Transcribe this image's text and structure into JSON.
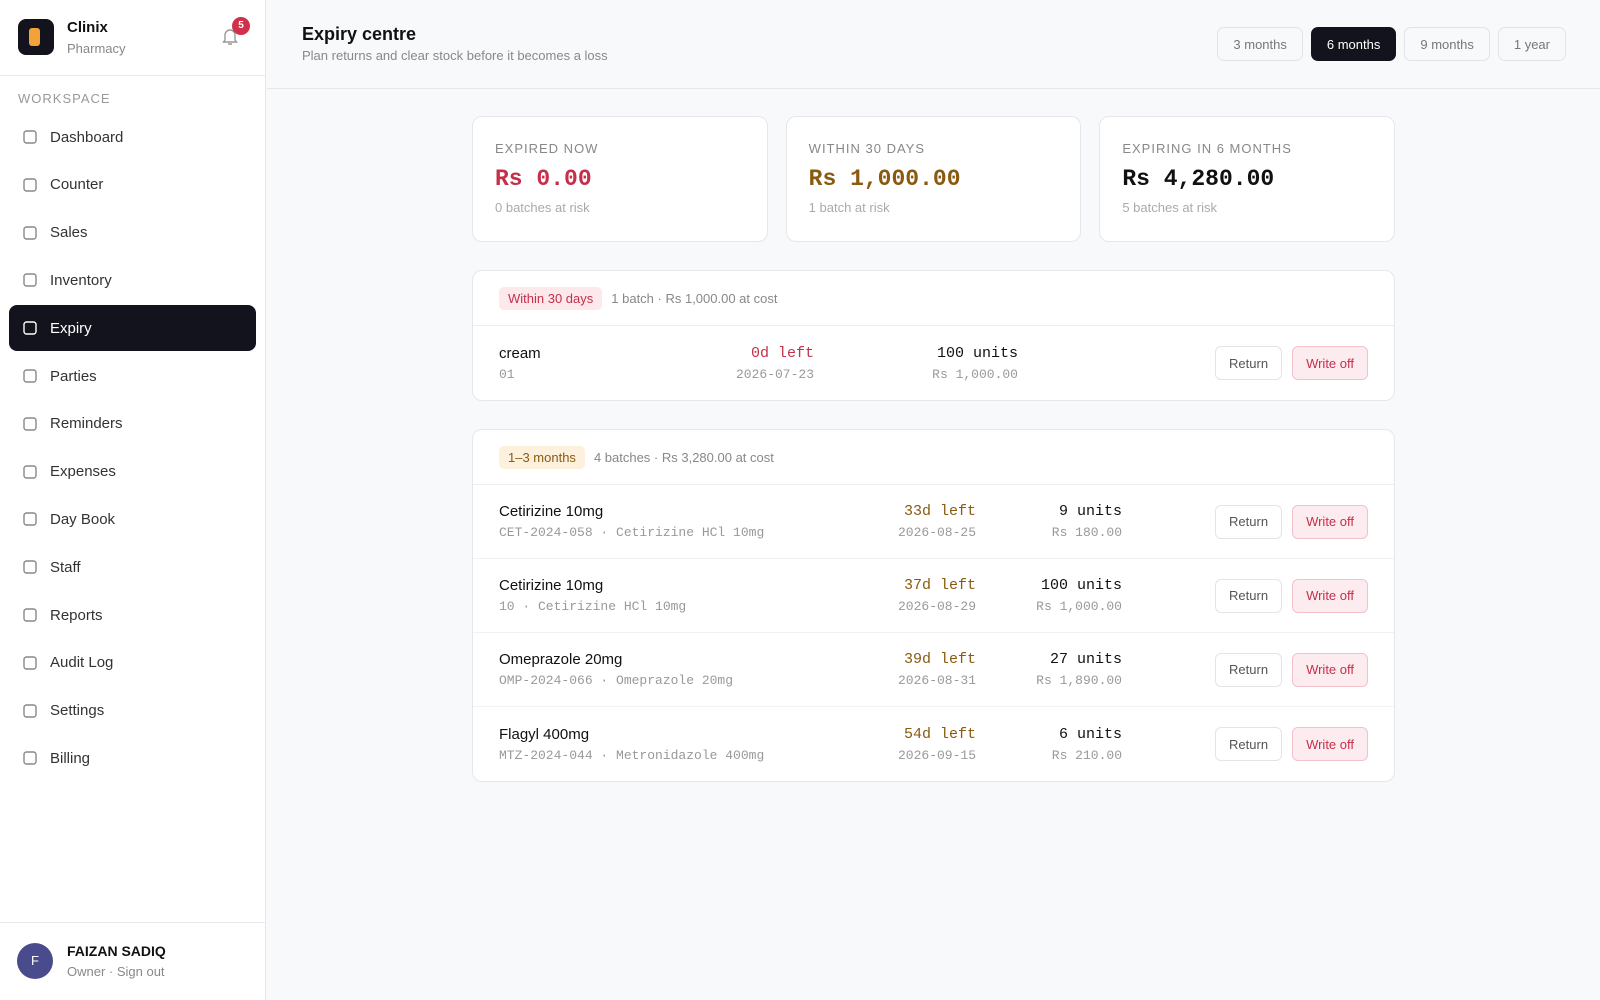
{
  "sidebar": {
    "brand": {
      "name": "Clinix",
      "sub": "Pharmacy"
    },
    "notifications": "5",
    "section": "WORKSPACE",
    "nav": [
      "Dashboard",
      "Counter",
      "Sales",
      "Inventory",
      "Expiry",
      "Parties",
      "Reminders",
      "Expenses",
      "Day Book",
      "Staff",
      "Reports",
      "Audit Log",
      "Settings",
      "Billing"
    ],
    "active": 4,
    "user": {
      "initial": "F",
      "name": "FAIZAN SADIQ",
      "role": "Owner · Sign out"
    }
  },
  "header": {
    "title": "Expiry centre",
    "subtitle": "Plan returns and clear stock before it becomes a loss",
    "ranges": [
      "3 months",
      "6 months",
      "9 months",
      "1 year"
    ],
    "selected": 1
  },
  "summary": [
    {
      "label": "EXPIRED NOW",
      "amount": "Rs 0.00",
      "note": "0 batches at risk"
    },
    {
      "label": "WITHIN 30 DAYS",
      "amount": "Rs 1,000.00",
      "note": "1 batch at risk"
    },
    {
      "label": "EXPIRING IN 6 MONTHS",
      "amount": "Rs 4,280.00",
      "note": "5 batches at risk"
    }
  ],
  "actions": {
    "return": "Return",
    "write_off": "Write off"
  },
  "groups": [
    {
      "badge": "Within 30 days",
      "summary": "1 batch · Rs 1,000.00 at cost",
      "rows": [
        {
          "name": "cream",
          "code": "01",
          "left": "0d left",
          "date": "2026-07-23",
          "units": "100 units",
          "cost": "Rs 1,000.00"
        }
      ]
    },
    {
      "badge": "1–3 months",
      "summary": "4 batches · Rs 3,280.00 at cost",
      "rows": [
        {
          "name": "Cetirizine 10mg",
          "code": "CET-2024-058 · Cetirizine HCl 10mg",
          "left": "33d left",
          "date": "2026-08-25",
          "units": "9 units",
          "cost": "Rs 180.00"
        },
        {
          "name": "Cetirizine 10mg",
          "code": "10 · Cetirizine HCl 10mg",
          "left": "37d left",
          "date": "2026-08-29",
          "units": "100 units",
          "cost": "Rs 1,000.00"
        },
        {
          "name": "Omeprazole 20mg",
          "code": "OMP-2024-066 · Omeprazole 20mg",
          "left": "39d left",
          "date": "2026-08-31",
          "units": "27 units",
          "cost": "Rs 1,890.00"
        },
        {
          "name": "Flagyl 400mg",
          "code": "MTZ-2024-044 · Metronidazole 400mg",
          "left": "54d left",
          "date": "2026-09-15",
          "units": "6 units",
          "cost": "Rs 210.00"
        }
      ]
    }
  ]
}
